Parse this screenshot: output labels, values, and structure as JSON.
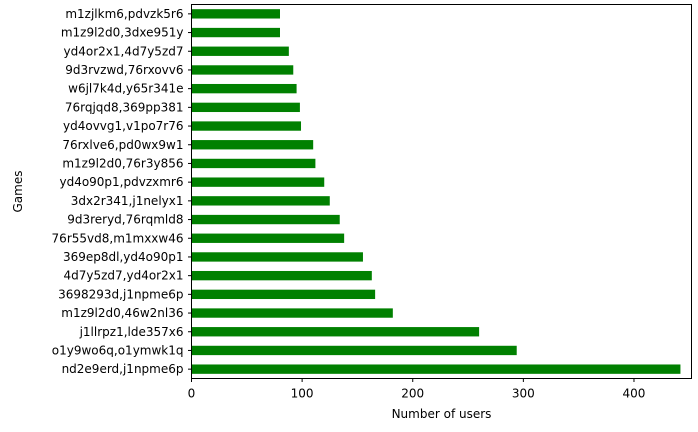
{
  "chart_data": {
    "type": "bar",
    "orientation": "horizontal",
    "xlabel": "Number of users",
    "ylabel": "Games",
    "xlim": [
      0,
      452
    ],
    "xticks": [
      0,
      100,
      200,
      300,
      400
    ],
    "bar_color": "#008000",
    "categories": [
      "nd2e9erd,j1npme6p",
      "o1y9wo6q,o1ymwk1q",
      "j1llrpz1,lde357x6",
      "m1z9l2d0,46w2nl36",
      "3698293d,j1npme6p",
      "4d7y5zd7,yd4or2x1",
      "369ep8dl,yd4o90p1",
      "76r55vd8,m1mxxw46",
      "9d3reryd,76rqmld8",
      "3dx2r341,j1nelyx1",
      "yd4o90p1,pdvzxmr6",
      "m1z9l2d0,76r3y856",
      "76rxlve6,pd0wx9w1",
      "yd4ovvg1,v1po7r76",
      "76rqjqd8,369pp381",
      "w6jl7k4d,y65r341e",
      "9d3rvzwd,76rxovv6",
      "yd4or2x1,4d7y5zd7",
      "m1z9l2d0,3dxe951y",
      "m1zjlkm6,pdvzk5r6"
    ],
    "values": [
      442,
      294,
      260,
      182,
      166,
      163,
      155,
      138,
      134,
      125,
      120,
      112,
      110,
      99,
      98,
      95,
      92,
      88,
      80,
      80
    ]
  }
}
